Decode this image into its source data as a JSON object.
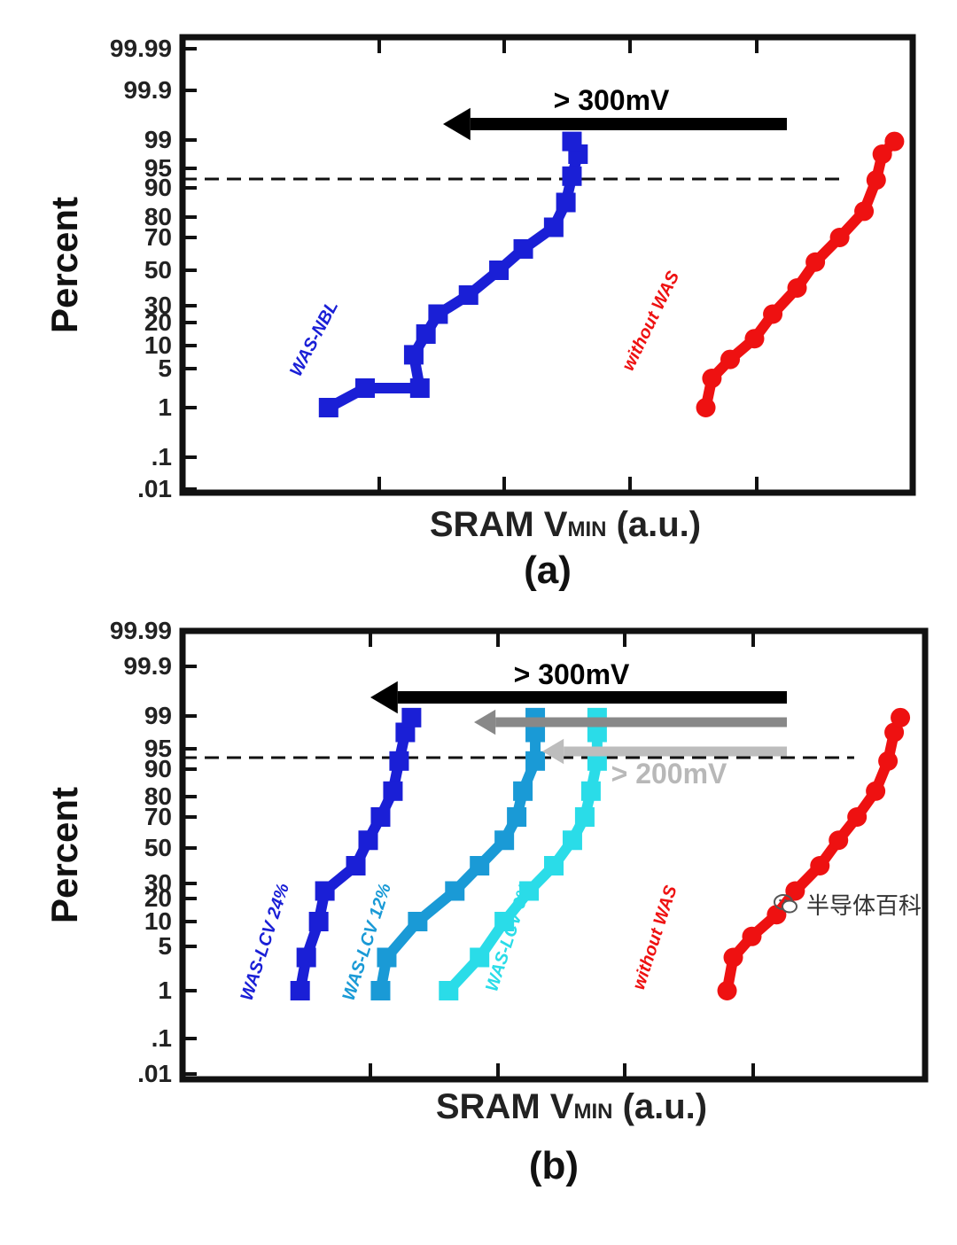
{
  "chart_data": [
    {
      "type": "scatter",
      "panel_label": "(a)",
      "xlabel_main": "SRAM V",
      "xlabel_sub": "MIN",
      "xlabel_tail": " (a.u.)",
      "ylabel": "Percent",
      "y_scale": "probability",
      "y_ticks": [
        "99.99",
        "99.9",
        "99",
        "95",
        "90",
        "80",
        "70",
        "50",
        "30",
        "20",
        "10",
        "5",
        "1",
        ".1",
        ".01"
      ],
      "reference_line": {
        "y": 95,
        "style": "dashed"
      },
      "annotations": [
        {
          "text": "> 300mV",
          "color": "#000000"
        }
      ],
      "series": [
        {
          "name": "WAS-NBL",
          "color": "#1a1fd6",
          "marker": "square",
          "points": [
            [
              1.2,
              1
            ],
            [
              1.5,
              3
            ],
            [
              1.95,
              3
            ],
            [
              1.9,
              8
            ],
            [
              2.0,
              15
            ],
            [
              2.1,
              25
            ],
            [
              2.35,
              36
            ],
            [
              2.6,
              50
            ],
            [
              2.8,
              63
            ],
            [
              3.05,
              75
            ],
            [
              3.15,
              85
            ],
            [
              3.2,
              93
            ],
            [
              3.25,
              97
            ],
            [
              3.2,
              98.8
            ]
          ]
        },
        {
          "name": "without WAS",
          "color": "#ee1111",
          "marker": "circle",
          "points": [
            [
              4.3,
              1
            ],
            [
              4.35,
              4
            ],
            [
              4.5,
              7
            ],
            [
              4.7,
              13
            ],
            [
              4.85,
              25
            ],
            [
              5.05,
              40
            ],
            [
              5.2,
              55
            ],
            [
              5.4,
              70
            ],
            [
              5.6,
              82
            ],
            [
              5.7,
              92
            ],
            [
              5.75,
              97
            ],
            [
              5.85,
              98.8
            ]
          ]
        }
      ]
    },
    {
      "type": "scatter",
      "panel_label": "(b)",
      "xlabel_main": "SRAM V",
      "xlabel_sub": "MIN",
      "xlabel_tail": " (a.u.)",
      "ylabel": "Percent",
      "y_scale": "probability",
      "y_ticks": [
        "99.99",
        "99.9",
        "99",
        "95",
        "90",
        "80",
        "70",
        "50",
        "30",
        "20",
        "10",
        "5",
        "1",
        ".1",
        ".01"
      ],
      "reference_line": {
        "y": 95,
        "style": "dashed"
      },
      "annotations": [
        {
          "text": "> 300mV",
          "color": "#000000"
        },
        {
          "text": "> 200mV",
          "color": "#b8b8b8"
        }
      ],
      "series": [
        {
          "name": "WAS-LCV 24%",
          "color": "#1a1fd6",
          "marker": "square",
          "points": [
            [
              0.95,
              1
            ],
            [
              1.0,
              4
            ],
            [
              1.1,
              10
            ],
            [
              1.15,
              25
            ],
            [
              1.4,
              40
            ],
            [
              1.5,
              55
            ],
            [
              1.6,
              70
            ],
            [
              1.7,
              82
            ],
            [
              1.75,
              92
            ],
            [
              1.8,
              97
            ],
            [
              1.85,
              98.8
            ]
          ]
        },
        {
          "name": "WAS-LCV 12%",
          "color": "#1a9ad6",
          "marker": "square",
          "points": [
            [
              1.6,
              1
            ],
            [
              1.65,
              4
            ],
            [
              1.9,
              10
            ],
            [
              2.2,
              25
            ],
            [
              2.4,
              40
            ],
            [
              2.6,
              55
            ],
            [
              2.7,
              70
            ],
            [
              2.75,
              82
            ],
            [
              2.85,
              92
            ],
            [
              2.85,
              97
            ],
            [
              2.85,
              98.8
            ]
          ]
        },
        {
          "name": "WAS-LCV 6%",
          "color": "#2adce8",
          "marker": "square",
          "points": [
            [
              2.15,
              1
            ],
            [
              2.4,
              4
            ],
            [
              2.6,
              10
            ],
            [
              2.8,
              25
            ],
            [
              3.0,
              40
            ],
            [
              3.15,
              55
            ],
            [
              3.25,
              70
            ],
            [
              3.3,
              82
            ],
            [
              3.35,
              92
            ],
            [
              3.35,
              97
            ],
            [
              3.35,
              98.8
            ]
          ]
        },
        {
          "name": "without WAS",
          "color": "#ee1111",
          "marker": "circle",
          "points": [
            [
              4.4,
              1
            ],
            [
              4.45,
              4
            ],
            [
              4.6,
              7
            ],
            [
              4.8,
              13
            ],
            [
              4.95,
              25
            ],
            [
              5.15,
              40
            ],
            [
              5.3,
              55
            ],
            [
              5.45,
              70
            ],
            [
              5.6,
              82
            ],
            [
              5.7,
              92
            ],
            [
              5.75,
              97
            ],
            [
              5.8,
              98.8
            ]
          ]
        }
      ]
    }
  ],
  "watermark": {
    "text": "半导体百科",
    "icon": "wechat-icon"
  }
}
